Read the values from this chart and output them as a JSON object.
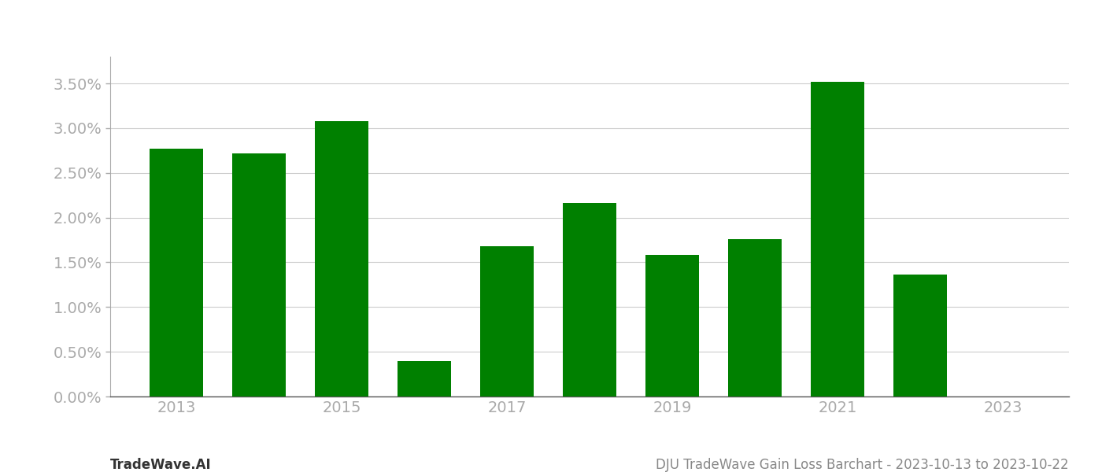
{
  "years": [
    2013,
    2014,
    2015,
    2016,
    2017,
    2018,
    2019,
    2020,
    2021,
    2022,
    2023
  ],
  "values": [
    0.0277,
    0.0272,
    0.0308,
    0.004,
    0.0168,
    0.0216,
    0.0158,
    0.0176,
    0.0352,
    0.0136,
    0.0
  ],
  "bar_color": "#008000",
  "title": "DJU TradeWave Gain Loss Barchart - 2023-10-13 to 2023-10-22",
  "watermark": "TradeWave.AI",
  "ylim": [
    0.0,
    0.038
  ],
  "yticks": [
    0.0,
    0.005,
    0.01,
    0.015,
    0.02,
    0.025,
    0.03,
    0.035
  ],
  "background_color": "#ffffff",
  "grid_color": "#cccccc",
  "title_fontsize": 12,
  "watermark_fontsize": 12,
  "tick_fontsize": 14,
  "tick_color": "#aaaaaa"
}
